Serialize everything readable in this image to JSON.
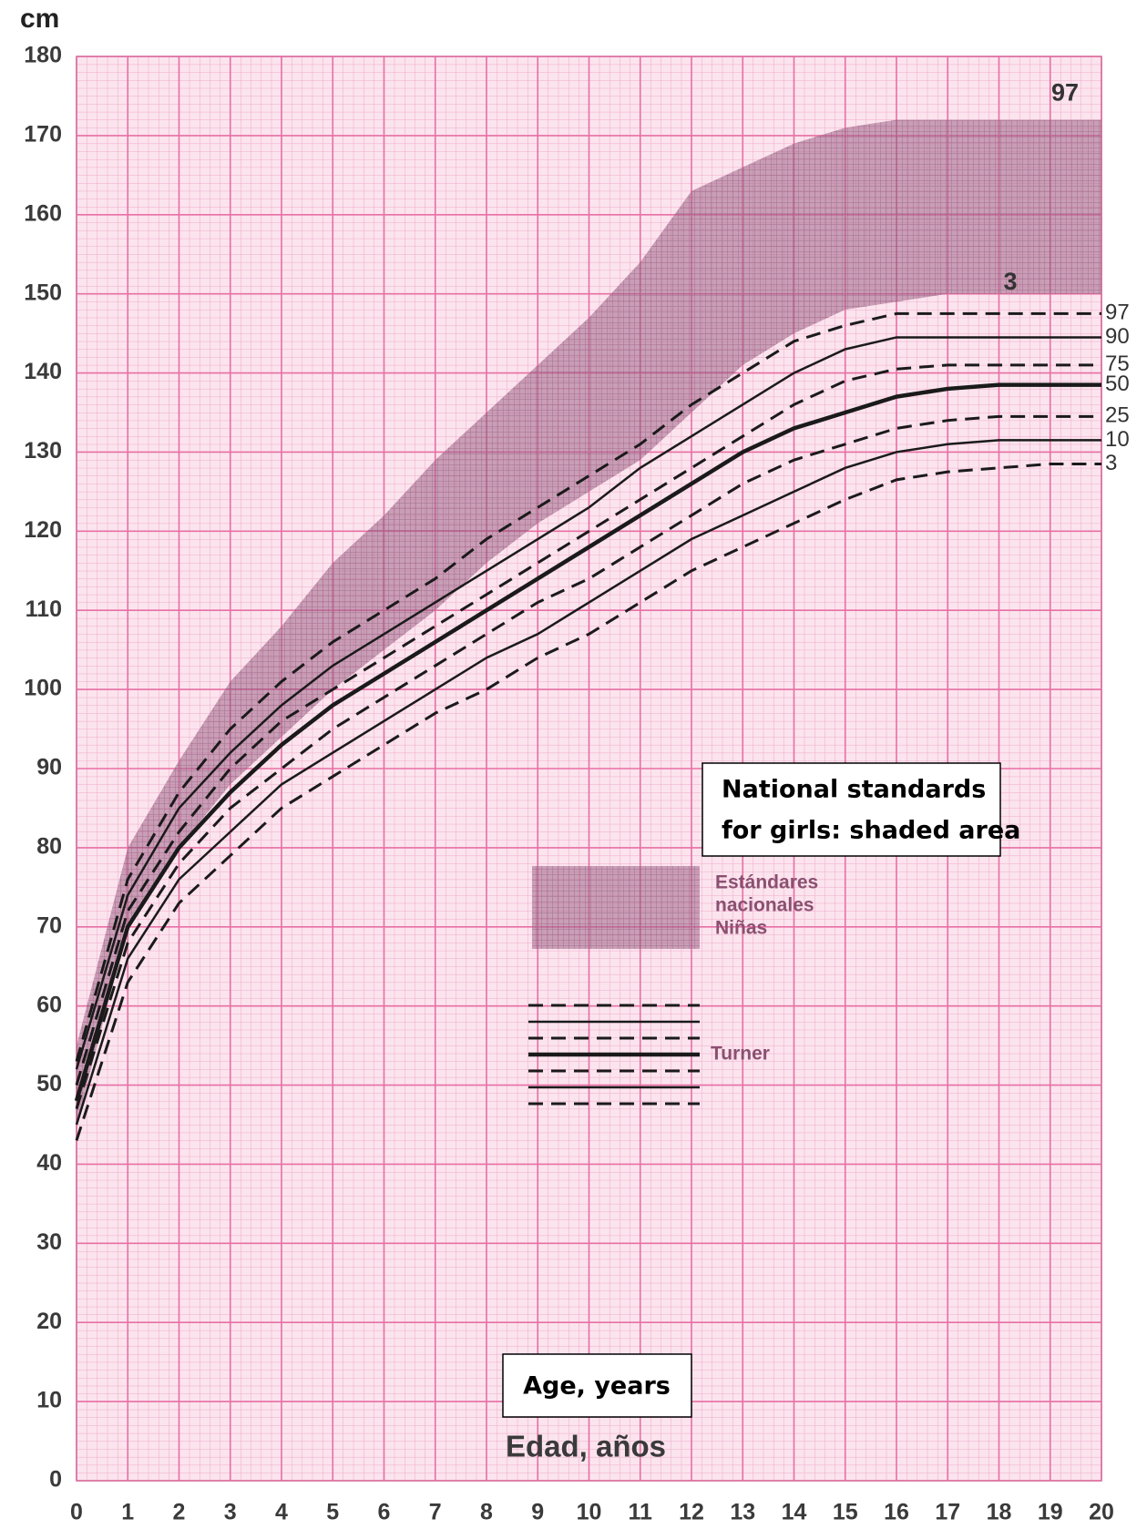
{
  "chart_data": {
    "type": "line",
    "y_axis_label": "cm",
    "x_axis_label": "Edad, años",
    "x": [
      0,
      1,
      2,
      3,
      4,
      5,
      6,
      7,
      8,
      9,
      10,
      11,
      12,
      13,
      14,
      15,
      16,
      17,
      18,
      19,
      20
    ],
    "xlim": [
      0,
      20
    ],
    "xticks": [
      0,
      1,
      2,
      3,
      4,
      5,
      6,
      7,
      8,
      9,
      10,
      11,
      12,
      13,
      14,
      15,
      16,
      17,
      18,
      19,
      20
    ],
    "ylim": [
      0,
      180
    ],
    "yticks": [
      0,
      10,
      20,
      30,
      40,
      50,
      60,
      70,
      80,
      90,
      100,
      110,
      120,
      130,
      140,
      150,
      160,
      170,
      180
    ],
    "grid": true,
    "band": {
      "legend_lines": [
        "Estándares",
        "nacionales",
        "Niñas"
      ],
      "upper_label": "97",
      "lower_label": "3",
      "color": "#9c5f86",
      "upper": [
        55,
        80,
        91,
        101,
        108,
        116,
        122,
        129,
        135,
        141,
        147,
        154,
        163,
        166,
        169,
        171,
        172,
        172,
        172,
        172,
        172
      ],
      "lower": [
        45,
        70,
        80,
        88,
        94,
        100,
        105,
        110,
        116,
        121,
        125,
        129,
        135,
        141,
        145,
        148,
        149,
        150,
        150,
        150,
        150
      ]
    },
    "series_legend_label": "Turner",
    "series": [
      {
        "name": "97",
        "color": "#1a1a1a",
        "dashed": true,
        "width": 3,
        "values": [
          53,
          76,
          87,
          95,
          101,
          106,
          110,
          114,
          119,
          123,
          127,
          131,
          136,
          140,
          144,
          146,
          147.5,
          147.5,
          147.5,
          147.5,
          147.5
        ]
      },
      {
        "name": "90",
        "color": "#1a1a1a",
        "dashed": false,
        "width": 2.5,
        "values": [
          52,
          74,
          85,
          92,
          98,
          103,
          107,
          111,
          115,
          119,
          123,
          128,
          132,
          136,
          140,
          143,
          144.5,
          144.5,
          144.5,
          144.5,
          144.5
        ]
      },
      {
        "name": "75",
        "color": "#1a1a1a",
        "dashed": true,
        "width": 3,
        "values": [
          50,
          72,
          82,
          90,
          96,
          100,
          104,
          108,
          112,
          116,
          120,
          124,
          128,
          132,
          136,
          139,
          140.5,
          141,
          141,
          141,
          141
        ]
      },
      {
        "name": "50",
        "color": "#1a1a1a",
        "dashed": false,
        "width": 4.5,
        "values": [
          48,
          70,
          80,
          87,
          93,
          98,
          102,
          106,
          110,
          114,
          118,
          122,
          126,
          130,
          133,
          135,
          137,
          138,
          138.5,
          138.5,
          138.5
        ]
      },
      {
        "name": "25",
        "color": "#1a1a1a",
        "dashed": true,
        "width": 3,
        "values": [
          47,
          68,
          78,
          85,
          90,
          95,
          99,
          103,
          107,
          111,
          114,
          118,
          122,
          126,
          129,
          131,
          133,
          134,
          134.5,
          134.5,
          134.5
        ]
      },
      {
        "name": "10",
        "color": "#1a1a1a",
        "dashed": false,
        "width": 2.5,
        "values": [
          45,
          66,
          76,
          82,
          88,
          92,
          96,
          100,
          104,
          107,
          111,
          115,
          119,
          122,
          125,
          128,
          130,
          131,
          131.5,
          131.5,
          131.5
        ]
      },
      {
        "name": "3",
        "color": "#1a1a1a",
        "dashed": true,
        "width": 3,
        "values": [
          43,
          63,
          73,
          79,
          85,
          89,
          93,
          97,
          100,
          104,
          107,
          111,
          115,
          118,
          121,
          124,
          126.5,
          127.5,
          128,
          128.5,
          128.5
        ]
      }
    ],
    "annotations": {
      "national_standards": [
        "National standards",
        "for girls: shaded area"
      ],
      "age": "Age, years"
    }
  }
}
